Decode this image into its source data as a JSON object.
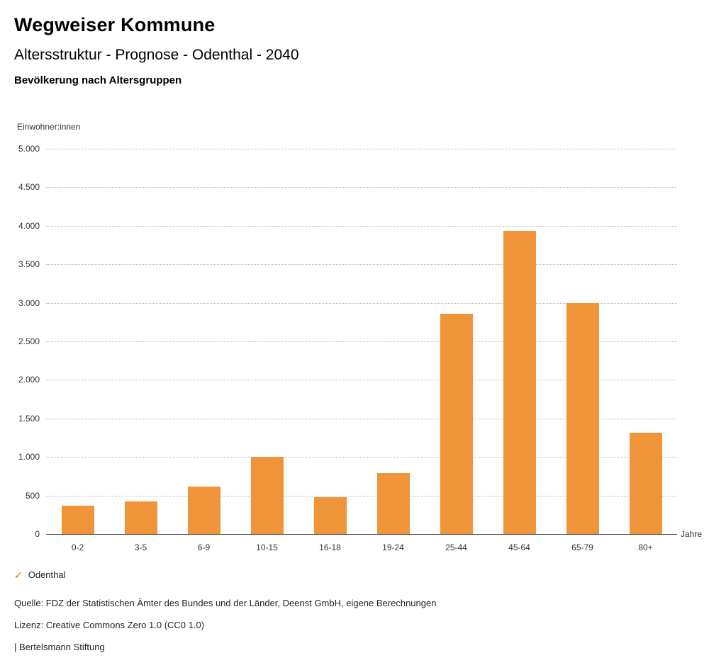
{
  "header": {
    "title": "Wegweiser Kommune",
    "subtitle": "Altersstruktur - Prognose - Odenthal - 2040",
    "chart_heading": "Bevölkerung nach Altersgruppen"
  },
  "chart_data": {
    "type": "bar",
    "title": "Bevölkerung nach Altersgruppen",
    "categories": [
      "0-2",
      "3-5",
      "6-9",
      "10-15",
      "16-18",
      "19-24",
      "25-44",
      "45-64",
      "65-79",
      "80+"
    ],
    "values": [
      370,
      420,
      615,
      1000,
      480,
      790,
      2860,
      3930,
      3000,
      1310
    ],
    "series_name": "Odenthal",
    "xlabel": "Jahre",
    "ylabel": "Einwohner:innen",
    "ylim": [
      0,
      5000
    ],
    "ytick_step": 500,
    "bar_color": "#ef9438",
    "grid": "horizontal-dotted",
    "legend_position": "bottom-left"
  },
  "legend": {
    "items": [
      {
        "label": "Odenthal",
        "color": "#ef9438",
        "marker": "check"
      }
    ]
  },
  "icons": {
    "legend_check": "✓"
  },
  "footer": {
    "source": "Quelle: FDZ der Statistischen Ämter des Bundes und der Länder, Deenst GmbH, eigene Berechnungen",
    "license": "Lizenz: Creative Commons Zero 1.0 (CC0 1.0)",
    "attribution": "| Bertelsmann Stiftung"
  }
}
